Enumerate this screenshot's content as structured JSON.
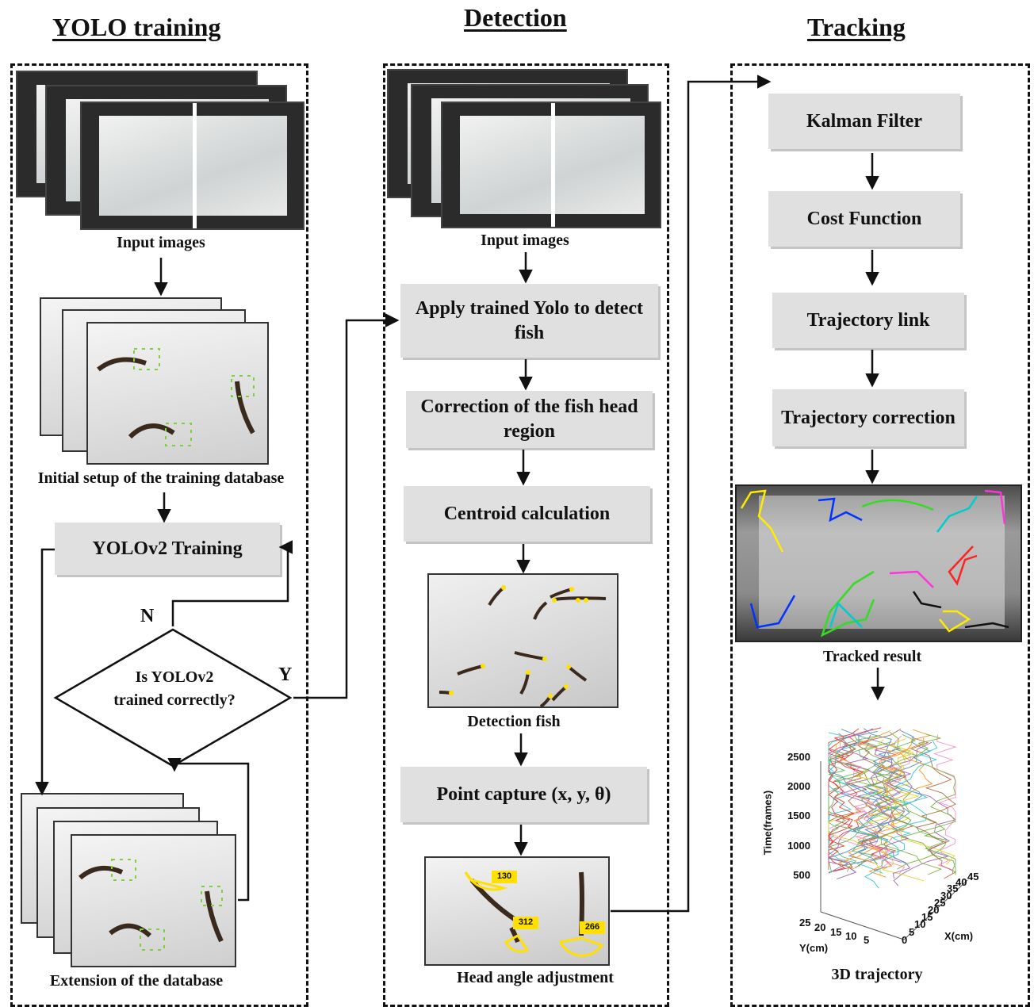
{
  "columns": {
    "training": "YOLO training",
    "detection": "Detection",
    "tracking": "Tracking"
  },
  "training": {
    "input_caption": "Input images",
    "setup_caption": "Initial setup of the training database",
    "train_box": "YOLOv2 Training",
    "decision": "Is YOLOv2 trained correctly?",
    "no_label": "N",
    "yes_label": "Y",
    "extension_caption": "Extension of the database"
  },
  "detection": {
    "input_caption": "Input images",
    "steps": [
      "Apply trained Yolo to detect fish",
      "Correction of the fish head region",
      "Centroid calculation"
    ],
    "detection_caption": "Detection fish",
    "point_capture": "Point capture (x, y, θ)",
    "head_caption": "Head angle adjustment",
    "angles": [
      "130",
      "312",
      "266"
    ]
  },
  "tracking": {
    "steps": [
      "Kalman Filter",
      "Cost Function",
      "Trajectory link",
      "Trajectory correction"
    ],
    "tracked_caption": "Tracked result",
    "trajectory_caption": "3D trajectory",
    "plot": {
      "z_label": "Time(frames)",
      "z_ticks": [
        "2500",
        "2000",
        "1500",
        "1000",
        "500"
      ],
      "y_label": "Y(cm)",
      "y_ticks": [
        "25",
        "20",
        "15",
        "10",
        "5"
      ],
      "x_label": "X(cm)",
      "x_ticks": [
        "0",
        "5",
        "10",
        "15",
        "20",
        "25",
        "30",
        "35",
        "40",
        "45"
      ]
    }
  },
  "colors": {
    "box": "#e0e0e0",
    "bbox": "#7fd13b",
    "angle": "#ffe000",
    "tracks": [
      "#ffeb00",
      "#0033ff",
      "#33dd22",
      "#ff33dd",
      "#00cccc",
      "#ff2222",
      "#111111"
    ]
  }
}
